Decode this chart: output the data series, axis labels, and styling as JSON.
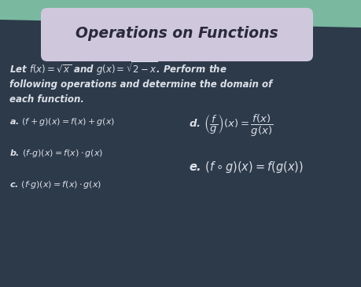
{
  "bg_color": "#2d3a4a",
  "green_top_color": "#7ab8a0",
  "title_bg": "#cfc8dc",
  "title_color": "#2a2a3a",
  "text_color": "#dce0e8",
  "title": "Operations on Functions",
  "intro_line1": "Let $f(x) = \\sqrt{x}$ and $g(x) = \\sqrt{2-x}$. Perform the",
  "intro_line2": "following operations and determine the domain of",
  "intro_line3": "each function.",
  "left_a": "a. $(f+g)(x) = f(x) + g(x)$",
  "left_b": "b. $(f{-}g)(x) = f(x) \\cdot g(x)$",
  "left_c": "c. $(f{\\cdot}g)(x) = f(x) \\cdot g(x)$",
  "right_d": "d. $\\left(\\dfrac{f}{g}\\right)(x) = \\dfrac{f(x)}{g(x)}$",
  "right_e": "e. $(f \\circ g)(x) = f(g(x))$",
  "figsize": [
    4.59,
    3.65
  ],
  "dpi": 100
}
